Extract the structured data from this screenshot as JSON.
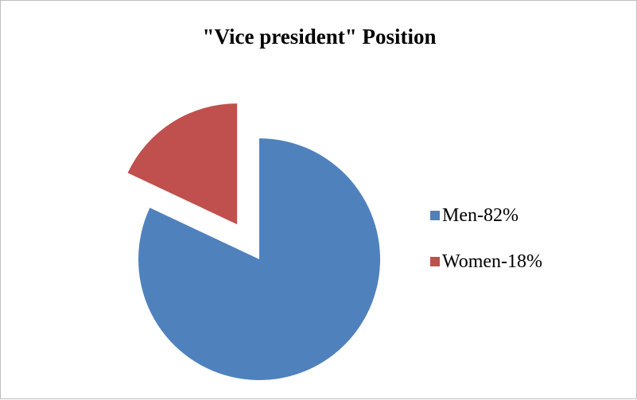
{
  "chart_data": {
    "type": "pie",
    "title": "\"Vice president\" Position",
    "slices": [
      {
        "label": "Men-82%",
        "value": 82,
        "color": "#4f81bd",
        "exploded": false
      },
      {
        "label": "Women-18%",
        "value": 18,
        "color": "#c0504d",
        "exploded": true
      }
    ],
    "legend_position": "right",
    "start_angle": "12 o'clock, clockwise"
  }
}
